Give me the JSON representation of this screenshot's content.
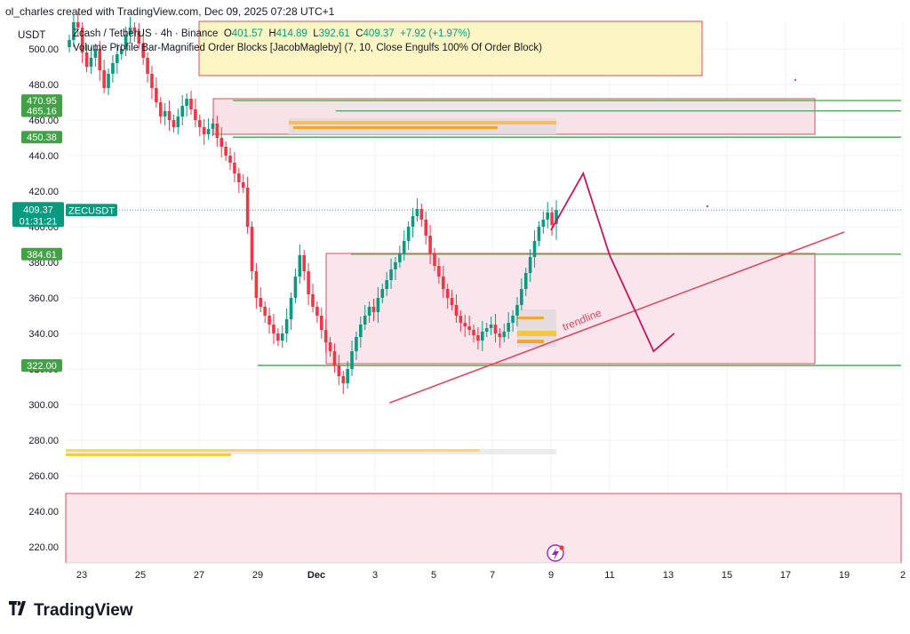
{
  "credit": "ol_charles created with TradingView.com, Dec 09, 2025 07:28 UTC+1",
  "symbol_box": "USDT",
  "legend": {
    "pair": "Zcash / TetherUS · 4h · Binance",
    "o_label": "O",
    "o": "401.57",
    "h_label": "H",
    "h": "414.89",
    "l_label": "L",
    "l": "392.61",
    "c_label": "C",
    "c": "409.37",
    "change": "+7.92 (+1.97%)",
    "indicator": "Volume Profile Bar-Magnified Order Blocks [JacobMagleby] (7, 10, Close Engulfs 100% Of Order Block)"
  },
  "price_tag": {
    "price": "409.37",
    "countdown": "01:31:21",
    "symbol": "ZECUSDT"
  },
  "level_labels": [
    "470.95",
    "465.16",
    "450.38",
    "384.61",
    "322.00"
  ],
  "annotation": "trendline",
  "logo": "TradingView",
  "colors": {
    "up": "#089981",
    "down": "#f23645",
    "level": "#4caf50",
    "zone": "#f8e1e7",
    "zone_border": "#e04a5f",
    "supply": "#fdf5c4",
    "drawing": "#c2185b"
  },
  "chart_data": {
    "type": "candlestick",
    "timeframe": "4h",
    "ylim": [
      208,
      520
    ],
    "y_ticks": [
      220,
      240,
      260,
      280,
      300,
      320,
      340,
      360,
      380,
      400,
      420,
      440,
      460,
      480,
      500
    ],
    "x_ticks": [
      "23",
      "25",
      "27",
      "29",
      "Dec",
      "3",
      "5",
      "7",
      "9",
      "11",
      "13",
      "15",
      "17",
      "19",
      "2"
    ],
    "x_ticks_days": [
      -8,
      -6,
      -4,
      -2,
      0,
      2,
      4,
      6,
      8,
      10,
      12,
      14,
      16,
      18,
      20
    ],
    "grid": true,
    "candles_close": [
      505,
      515,
      512,
      498,
      490,
      495,
      500,
      488,
      478,
      486,
      492,
      497,
      500,
      508,
      512,
      510,
      503,
      495,
      486,
      478,
      470,
      462,
      465,
      460,
      456,
      462,
      468,
      472,
      466,
      460,
      456,
      452,
      455,
      458,
      450,
      445,
      440,
      436,
      430,
      425,
      422,
      400,
      375,
      360,
      355,
      350,
      345,
      340,
      336,
      340,
      348,
      360,
      372,
      384,
      375,
      362,
      355,
      350,
      342,
      335,
      330,
      322,
      316,
      312,
      320,
      330,
      338,
      345,
      350,
      355,
      352,
      360,
      365,
      370,
      376,
      380,
      385,
      392,
      400,
      406,
      410,
      404,
      395,
      385,
      378,
      372,
      365,
      360,
      356,
      350,
      346,
      344,
      342,
      339,
      336,
      341,
      343,
      345,
      340,
      338,
      341,
      346,
      350,
      356,
      365,
      374,
      383,
      392,
      400,
      404,
      408,
      401,
      409.37
    ],
    "last": {
      "o": 401.57,
      "h": 414.89,
      "l": 392.61,
      "c": 409.37,
      "change": 7.92,
      "change_pct": 1.97
    },
    "horizontal_levels": [
      470.95,
      465.16,
      450.38,
      384.61,
      322.0
    ],
    "zones": [
      {
        "kind": "supply",
        "from": 485,
        "to": 520
      },
      {
        "kind": "order_block",
        "from": 452,
        "to": 472
      },
      {
        "kind": "order_block",
        "from": 323,
        "to": 385
      },
      {
        "kind": "order_block",
        "from": 208,
        "to": 250
      }
    ],
    "trendline": {
      "from": [
        2.5,
        301
      ],
      "to": [
        18.0,
        397
      ]
    },
    "projection": [
      [
        8.0,
        398
      ],
      [
        9.1,
        430
      ],
      [
        10.0,
        384
      ],
      [
        11.5,
        330
      ],
      [
        12.2,
        340
      ]
    ]
  }
}
